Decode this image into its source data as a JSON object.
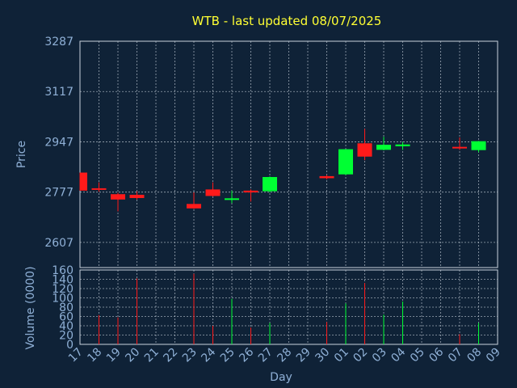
{
  "chart_data": {
    "type": "candlestick",
    "title": "WTB - last updated 08/07/2025",
    "xlabel": "Day",
    "price_axis": {
      "ylabel": "Price",
      "ylim": [
        2522,
        3287
      ],
      "ticks": [
        2607,
        2777,
        2947,
        3117,
        3287
      ]
    },
    "volume_axis": {
      "ylabel": "Volume (0000)",
      "ylim": [
        0,
        160
      ],
      "ticks": [
        0,
        20,
        40,
        60,
        80,
        100,
        120,
        140,
        160
      ]
    },
    "x_ticks": [
      "17",
      "18",
      "19",
      "20",
      "21",
      "22",
      "23",
      "24",
      "25",
      "26",
      "27",
      "28",
      "29",
      "30",
      "01",
      "02",
      "03",
      "04",
      "05",
      "06",
      "07",
      "08",
      "09"
    ],
    "grid": true,
    "colors": {
      "up": "#00ff33",
      "down": "#ff1a1a"
    },
    "candles": [
      {
        "day": "17",
        "open": 2843,
        "high": 2843,
        "low": 2782,
        "close": 2782,
        "volume": 0
      },
      {
        "day": "18",
        "open": 2790,
        "high": 2810,
        "low": 2778,
        "close": 2786,
        "volume": 63
      },
      {
        "day": "19",
        "open": 2770,
        "high": 2775,
        "low": 2712,
        "close": 2752,
        "volume": 58
      },
      {
        "day": "20",
        "open": 2768,
        "high": 2780,
        "low": 2752,
        "close": 2757,
        "volume": 142
      },
      {
        "day": "23",
        "open": 2737,
        "high": 2776,
        "low": 2720,
        "close": 2722,
        "volume": 152
      },
      {
        "day": "24",
        "open": 2786,
        "high": 2810,
        "low": 2762,
        "close": 2764,
        "volume": 40
      },
      {
        "day": "25",
        "open": 2751,
        "high": 2782,
        "low": 2740,
        "close": 2756,
        "volume": 98
      },
      {
        "day": "26",
        "open": 2782,
        "high": 2786,
        "low": 2745,
        "close": 2776,
        "volume": 36
      },
      {
        "day": "27",
        "open": 2780,
        "high": 2830,
        "low": 2776,
        "close": 2828,
        "volume": 46
      },
      {
        "day": "30",
        "open": 2831,
        "high": 2835,
        "low": 2820,
        "close": 2824,
        "volume": 48
      },
      {
        "day": "01",
        "open": 2837,
        "high": 2922,
        "low": 2834,
        "close": 2922,
        "volume": 88
      },
      {
        "day": "02",
        "open": 2942,
        "high": 2991,
        "low": 2885,
        "close": 2897,
        "volume": 132
      },
      {
        "day": "03",
        "open": 2920,
        "high": 2964,
        "low": 2918,
        "close": 2937,
        "volume": 64
      },
      {
        "day": "04",
        "open": 2932,
        "high": 2946,
        "low": 2920,
        "close": 2938,
        "volume": 92
      },
      {
        "day": "07",
        "open": 2930,
        "high": 2962,
        "low": 2920,
        "close": 2925,
        "volume": 22
      },
      {
        "day": "08",
        "open": 2919,
        "high": 2950,
        "low": 2912,
        "close": 2949,
        "volume": 46
      }
    ]
  }
}
